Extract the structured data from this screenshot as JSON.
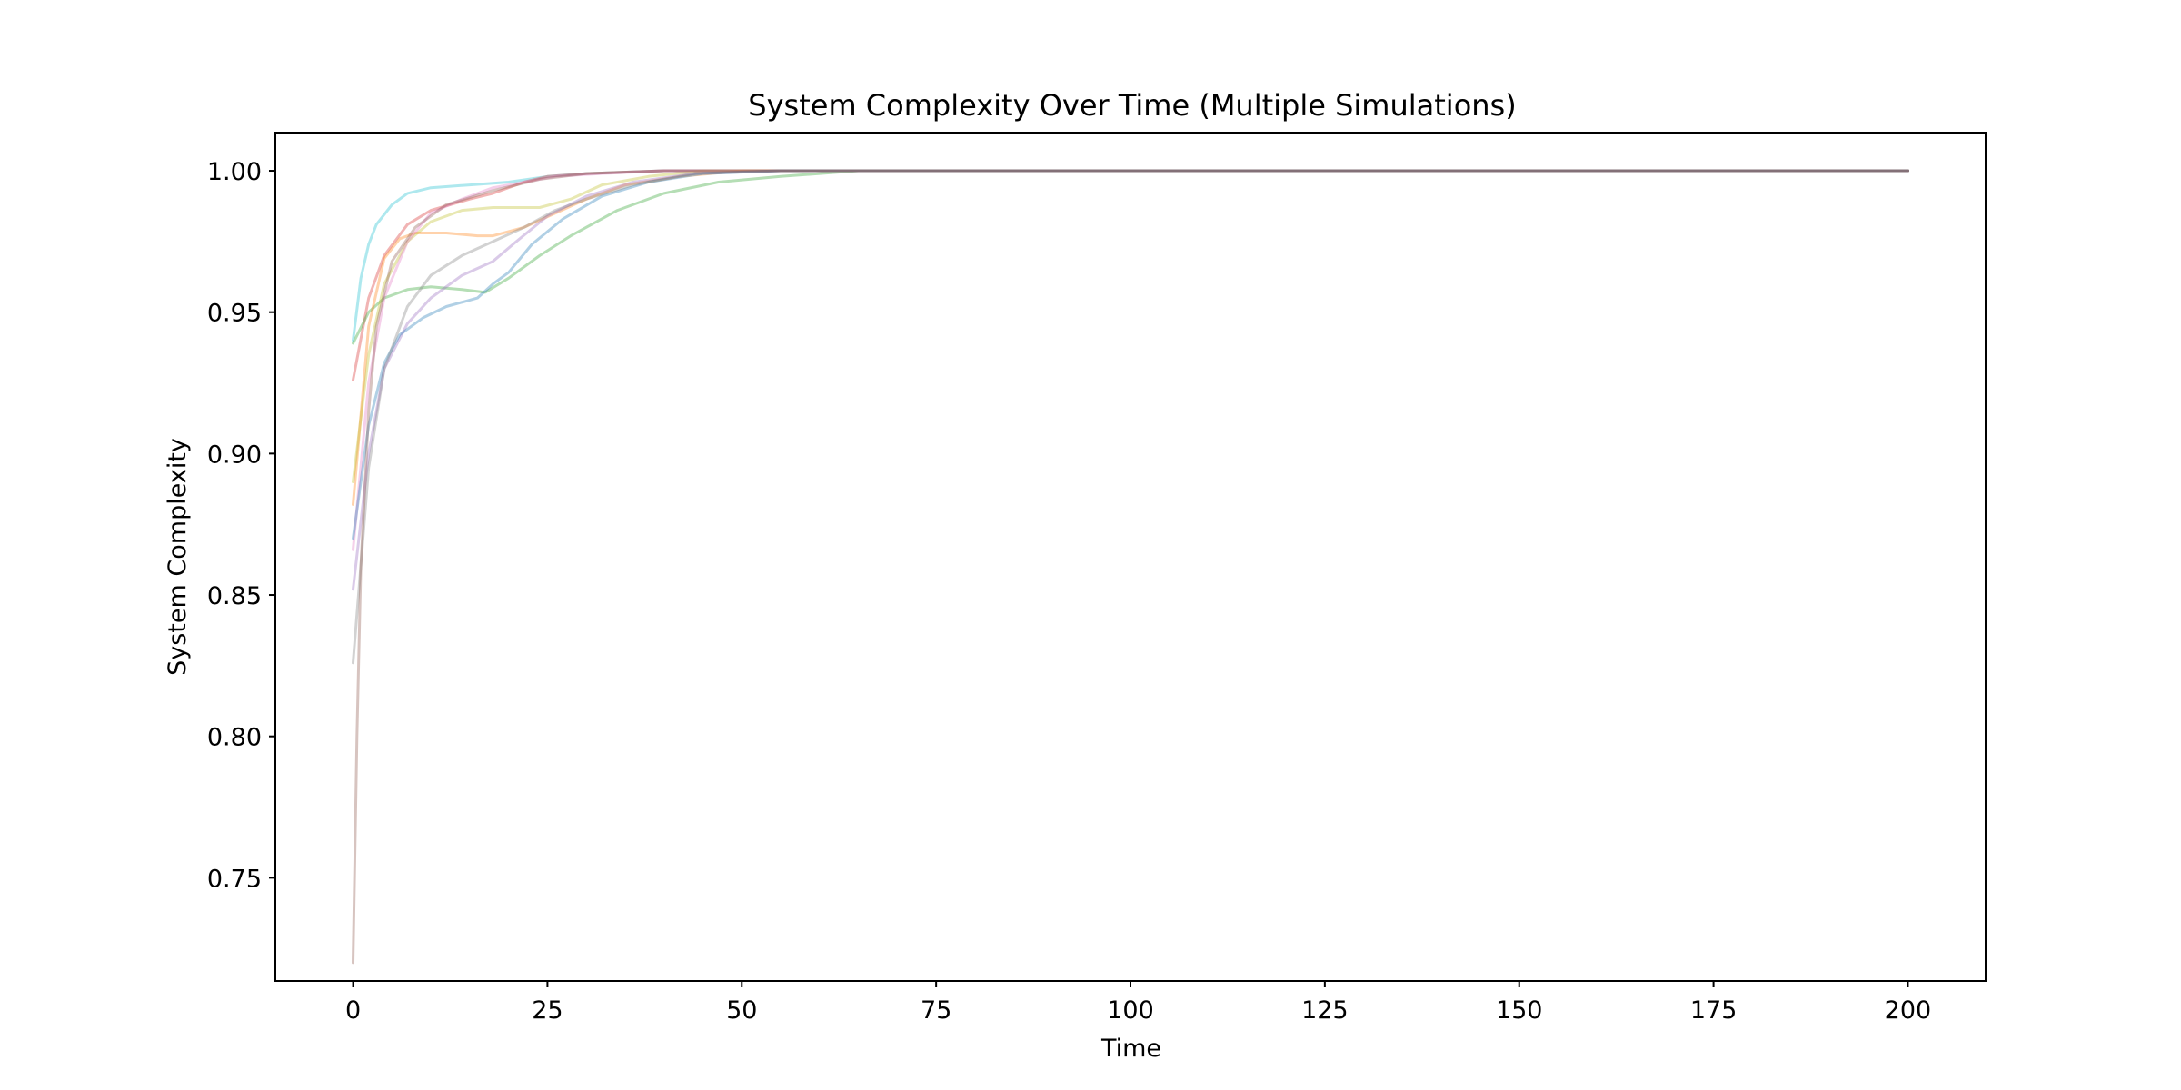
{
  "chart_data": {
    "type": "line",
    "title": "System Complexity Over Time (Multiple Simulations)",
    "xlabel": "Time",
    "ylabel": "System Complexity",
    "xlim": [
      -10,
      210
    ],
    "ylim": [
      0.7135,
      1.0135
    ],
    "xticks": [
      0,
      25,
      50,
      75,
      100,
      125,
      150,
      175,
      200
    ],
    "xtick_labels": [
      "0",
      "25",
      "50",
      "75",
      "100",
      "125",
      "150",
      "175",
      "200"
    ],
    "yticks": [
      0.75,
      0.8,
      0.85,
      0.9,
      0.95,
      1.0
    ],
    "ytick_labels": [
      "0.75",
      "0.80",
      "0.85",
      "0.90",
      "0.95",
      "1.00"
    ],
    "grid": false,
    "legend": "none",
    "line_opacity": 0.35,
    "series": [
      {
        "color": "#17becf",
        "points": [
          [
            0,
            0.94
          ],
          [
            1,
            0.962
          ],
          [
            2,
            0.974
          ],
          [
            3,
            0.981
          ],
          [
            5,
            0.988
          ],
          [
            7,
            0.992
          ],
          [
            10,
            0.994
          ],
          [
            15,
            0.995
          ],
          [
            20,
            0.996
          ],
          [
            25,
            0.998
          ],
          [
            30,
            0.999
          ],
          [
            40,
            1.0
          ],
          [
            60,
            1.0
          ],
          [
            200,
            1.0
          ]
        ]
      },
      {
        "color": "#d62728",
        "points": [
          [
            0,
            0.926
          ],
          [
            2,
            0.955
          ],
          [
            4,
            0.97
          ],
          [
            7,
            0.981
          ],
          [
            10,
            0.986
          ],
          [
            15,
            0.99
          ],
          [
            18,
            0.992
          ],
          [
            22,
            0.996
          ],
          [
            25,
            0.998
          ],
          [
            30,
            0.999
          ],
          [
            40,
            1.0
          ],
          [
            60,
            1.0
          ],
          [
            200,
            1.0
          ]
        ]
      },
      {
        "color": "#2ca02c",
        "points": [
          [
            0,
            0.939
          ],
          [
            2,
            0.95
          ],
          [
            4,
            0.955
          ],
          [
            7,
            0.958
          ],
          [
            10,
            0.959
          ],
          [
            14,
            0.958
          ],
          [
            17,
            0.957
          ],
          [
            20,
            0.962
          ],
          [
            24,
            0.97
          ],
          [
            28,
            0.977
          ],
          [
            34,
            0.986
          ],
          [
            40,
            0.992
          ],
          [
            47,
            0.996
          ],
          [
            55,
            0.998
          ],
          [
            65,
            1.0
          ],
          [
            200,
            1.0
          ]
        ]
      },
      {
        "color": "#ff7f0e",
        "points": [
          [
            0,
            0.882
          ],
          [
            2,
            0.945
          ],
          [
            4,
            0.969
          ],
          [
            6,
            0.976
          ],
          [
            8,
            0.978
          ],
          [
            12,
            0.978
          ],
          [
            16,
            0.977
          ],
          [
            18,
            0.977
          ],
          [
            22,
            0.98
          ],
          [
            26,
            0.985
          ],
          [
            30,
            0.99
          ],
          [
            35,
            0.995
          ],
          [
            42,
            0.998
          ],
          [
            50,
            1.0
          ],
          [
            200,
            1.0
          ]
        ]
      },
      {
        "color": "#bcbd22",
        "points": [
          [
            0,
            0.89
          ],
          [
            2,
            0.935
          ],
          [
            4,
            0.96
          ],
          [
            7,
            0.975
          ],
          [
            10,
            0.982
          ],
          [
            14,
            0.986
          ],
          [
            18,
            0.987
          ],
          [
            24,
            0.987
          ],
          [
            28,
            0.99
          ],
          [
            32,
            0.995
          ],
          [
            38,
            0.998
          ],
          [
            45,
            1.0
          ],
          [
            200,
            1.0
          ]
        ]
      },
      {
        "color": "#e377c2",
        "points": [
          [
            0,
            0.866
          ],
          [
            2,
            0.925
          ],
          [
            4,
            0.955
          ],
          [
            7,
            0.975
          ],
          [
            10,
            0.985
          ],
          [
            14,
            0.99
          ],
          [
            18,
            0.994
          ],
          [
            22,
            0.996
          ],
          [
            26,
            0.998
          ],
          [
            32,
            0.999
          ],
          [
            40,
            1.0
          ],
          [
            200,
            1.0
          ]
        ]
      },
      {
        "color": "#9467bd",
        "points": [
          [
            0,
            0.852
          ],
          [
            2,
            0.9
          ],
          [
            4,
            0.93
          ],
          [
            7,
            0.946
          ],
          [
            10,
            0.955
          ],
          [
            14,
            0.963
          ],
          [
            18,
            0.968
          ],
          [
            21,
            0.975
          ],
          [
            25,
            0.984
          ],
          [
            30,
            0.991
          ],
          [
            36,
            0.996
          ],
          [
            44,
            0.999
          ],
          [
            55,
            1.0
          ],
          [
            200,
            1.0
          ]
        ]
      },
      {
        "color": "#1f77b4",
        "points": [
          [
            0,
            0.87
          ],
          [
            2,
            0.91
          ],
          [
            4,
            0.932
          ],
          [
            6,
            0.942
          ],
          [
            9,
            0.948
          ],
          [
            12,
            0.952
          ],
          [
            16,
            0.955
          ],
          [
            18,
            0.96
          ],
          [
            20,
            0.964
          ],
          [
            23,
            0.974
          ],
          [
            27,
            0.983
          ],
          [
            32,
            0.991
          ],
          [
            38,
            0.996
          ],
          [
            45,
            0.999
          ],
          [
            55,
            1.0
          ],
          [
            200,
            1.0
          ]
        ]
      },
      {
        "color": "#7f7f7f",
        "points": [
          [
            0,
            0.826
          ],
          [
            2,
            0.895
          ],
          [
            4,
            0.93
          ],
          [
            7,
            0.952
          ],
          [
            10,
            0.963
          ],
          [
            14,
            0.97
          ],
          [
            18,
            0.975
          ],
          [
            22,
            0.98
          ],
          [
            26,
            0.986
          ],
          [
            30,
            0.99
          ],
          [
            36,
            0.995
          ],
          [
            44,
            0.999
          ],
          [
            55,
            1.0
          ],
          [
            200,
            1.0
          ]
        ]
      },
      {
        "color": "#8c564b",
        "points": [
          [
            0,
            0.72
          ],
          [
            0.5,
            0.8
          ],
          [
            1,
            0.86
          ],
          [
            2,
            0.915
          ],
          [
            3,
            0.945
          ],
          [
            5,
            0.968
          ],
          [
            8,
            0.98
          ],
          [
            12,
            0.988
          ],
          [
            18,
            0.993
          ],
          [
            24,
            0.997
          ],
          [
            30,
            0.999
          ],
          [
            40,
            1.0
          ],
          [
            200,
            1.0
          ]
        ]
      }
    ]
  }
}
